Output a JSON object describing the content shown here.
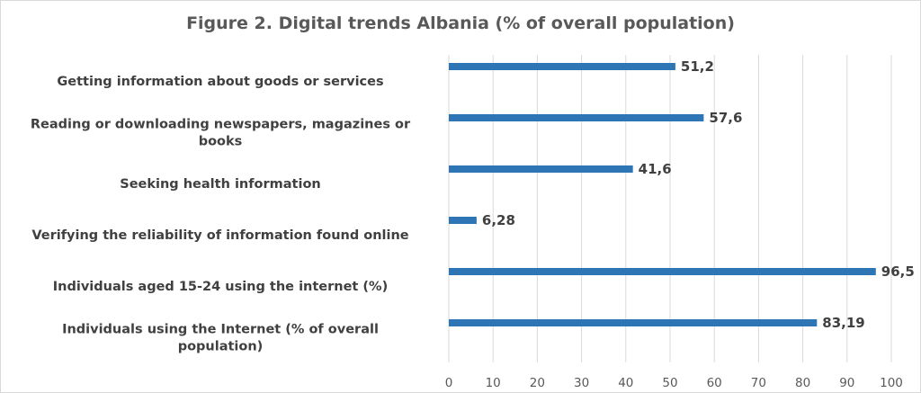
{
  "chart_data": {
    "type": "bar",
    "orientation": "horizontal",
    "title": "Figure 2. Digital trends Albania (% of overall population)",
    "categories": [
      "Getting information about goods or services",
      "Reading or downloading newspapers, magazines or books",
      "Seeking health information",
      "Verifying the reliability of information found online",
      "Individuals aged 15-24 using the internet (%)",
      "Individuals using the Internet (% of overall population)"
    ],
    "category_lines": [
      [
        "Getting information about goods or services"
      ],
      [
        "Reading or downloading newspapers, magazines or",
        "books"
      ],
      [
        "Seeking health information"
      ],
      [
        "Verifying the reliability of information found online"
      ],
      [
        "Individuals aged 15-24 using the internet (%)"
      ],
      [
        "Individuals using the Internet (% of overall",
        "population)"
      ]
    ],
    "values": [
      51.2,
      57.6,
      41.6,
      6.28,
      96.5,
      83.19
    ],
    "value_labels": [
      "51,2",
      "57,6",
      "41,6",
      "6,28",
      "96,5",
      "83,19"
    ],
    "xlim": [
      0,
      100
    ],
    "xticks": [
      "0",
      "10",
      "20",
      "30",
      "40",
      "50",
      "60",
      "70",
      "80",
      "90",
      "100"
    ],
    "grid": "vertical",
    "legend": "none",
    "bar_color": "#2e75b6"
  }
}
